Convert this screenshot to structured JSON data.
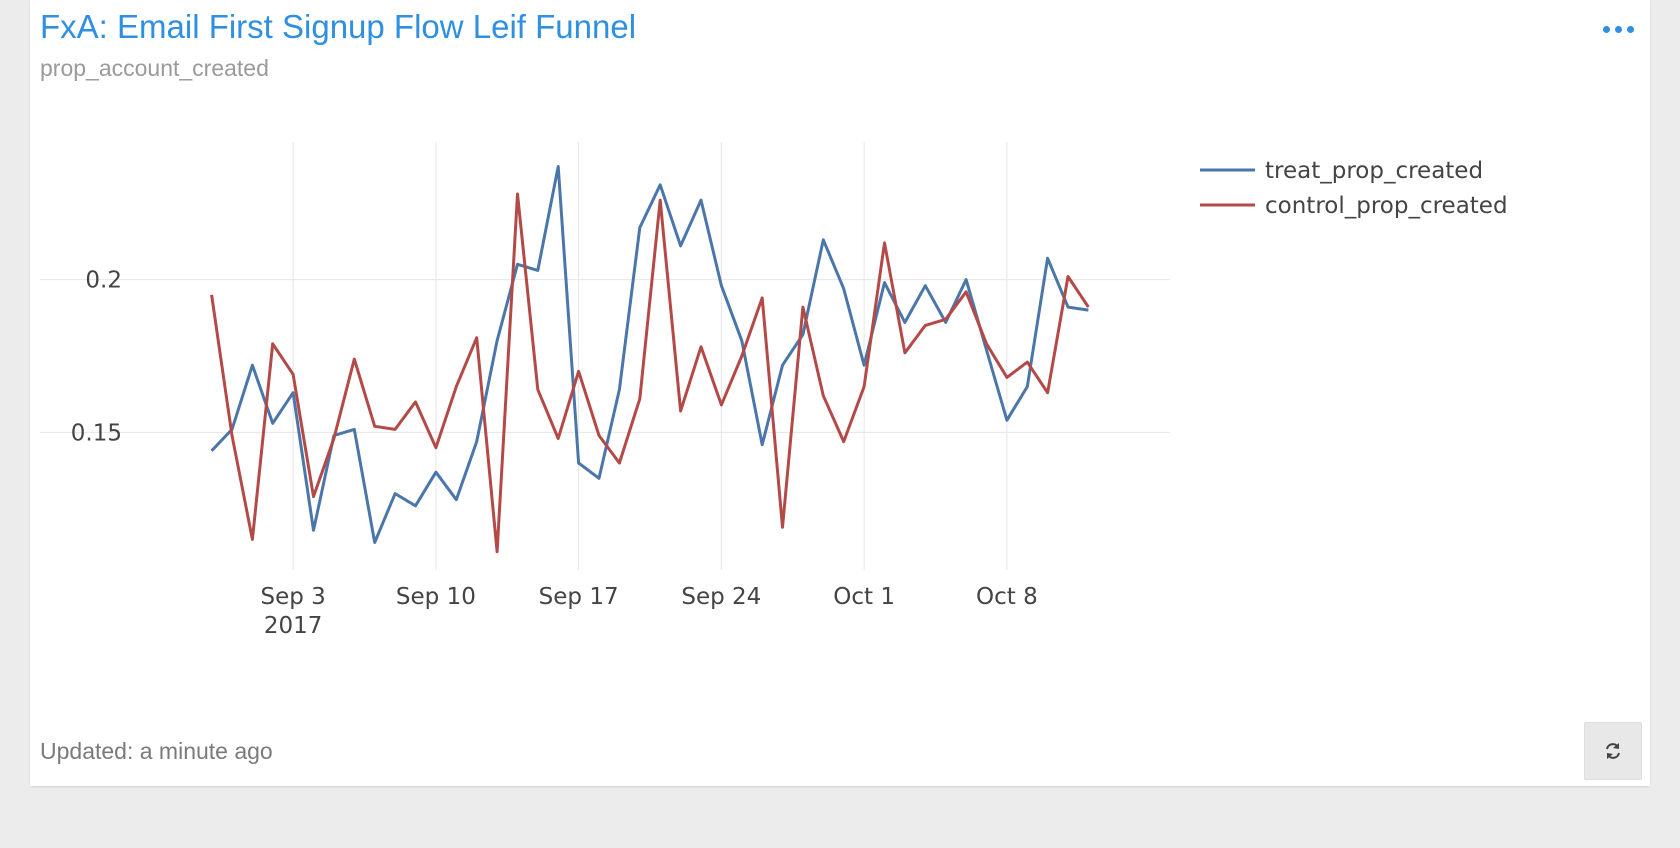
{
  "widget": {
    "title": "FxA: Email First Signup Flow Leif Funnel",
    "subtitle": "prop_account_created",
    "updated": "Updated: a minute ago",
    "menu_icon": "more-horizontal-icon",
    "refresh_icon": "refresh-icon",
    "accent_color": "#2f8fe0"
  },
  "chart_data": {
    "type": "line",
    "x": [
      "2017-08-30",
      "2017-08-31",
      "2017-09-01",
      "2017-09-02",
      "2017-09-03",
      "2017-09-04",
      "2017-09-05",
      "2017-09-06",
      "2017-09-07",
      "2017-09-08",
      "2017-09-09",
      "2017-09-10",
      "2017-09-11",
      "2017-09-12",
      "2017-09-13",
      "2017-09-14",
      "2017-09-15",
      "2017-09-16",
      "2017-09-17",
      "2017-09-18",
      "2017-09-19",
      "2017-09-20",
      "2017-09-21",
      "2017-09-22",
      "2017-09-23",
      "2017-09-24",
      "2017-09-25",
      "2017-09-26",
      "2017-09-27",
      "2017-09-28",
      "2017-09-29",
      "2017-09-30",
      "2017-10-01",
      "2017-10-02",
      "2017-10-03",
      "2017-10-04",
      "2017-10-05",
      "2017-10-06",
      "2017-10-07",
      "2017-10-08",
      "2017-10-09",
      "2017-10-10",
      "2017-10-11",
      "2017-10-12",
      "2017-10-13"
    ],
    "series": [
      {
        "name": "treat_prop_created",
        "color": "#4a76aa",
        "values": [
          0.144,
          0.151,
          0.172,
          0.153,
          0.163,
          0.118,
          0.149,
          0.151,
          0.114,
          0.13,
          0.126,
          0.137,
          0.128,
          0.147,
          0.18,
          0.205,
          0.203,
          0.237,
          0.14,
          0.135,
          0.164,
          0.217,
          0.231,
          0.211,
          0.226,
          0.198,
          0.18,
          0.146,
          0.172,
          0.182,
          0.213,
          0.197,
          0.172,
          0.199,
          0.186,
          0.198,
          0.186,
          0.2,
          0.177,
          0.154,
          0.165,
          0.207,
          0.191,
          0.19,
          null
        ]
      },
      {
        "name": "control_prop_created",
        "color": "#b34a47",
        "values": [
          0.195,
          0.149,
          0.115,
          0.179,
          0.169,
          0.129,
          0.148,
          0.174,
          0.152,
          0.151,
          0.16,
          0.145,
          0.165,
          0.181,
          0.111,
          0.228,
          0.164,
          0.148,
          0.17,
          0.149,
          0.14,
          0.161,
          0.226,
          0.157,
          0.178,
          0.159,
          0.175,
          0.194,
          0.119,
          0.191,
          0.162,
          0.147,
          0.165,
          0.212,
          0.176,
          0.185,
          0.187,
          0.196,
          0.179,
          0.168,
          0.173,
          0.163,
          0.201,
          0.191,
          null
        ]
      }
    ],
    "x_ticks": [
      {
        "date": "2017-09-03",
        "label": "Sep 3",
        "sublabel": "2017"
      },
      {
        "date": "2017-09-10",
        "label": "Sep 10",
        "sublabel": ""
      },
      {
        "date": "2017-09-17",
        "label": "Sep 17",
        "sublabel": ""
      },
      {
        "date": "2017-09-24",
        "label": "Sep 24",
        "sublabel": ""
      },
      {
        "date": "2017-10-01",
        "label": "Oct 1",
        "sublabel": ""
      },
      {
        "date": "2017-10-08",
        "label": "Oct 8",
        "sublabel": ""
      }
    ],
    "y_ticks": [
      {
        "value": 0.15,
        "label": "0.15"
      },
      {
        "value": 0.2,
        "label": "0.2"
      }
    ],
    "xlim": [
      "2017-08-26",
      "2017-10-16"
    ],
    "ylim": [
      0.105,
      0.245
    ],
    "grid": true,
    "legend_position": "top-right"
  }
}
